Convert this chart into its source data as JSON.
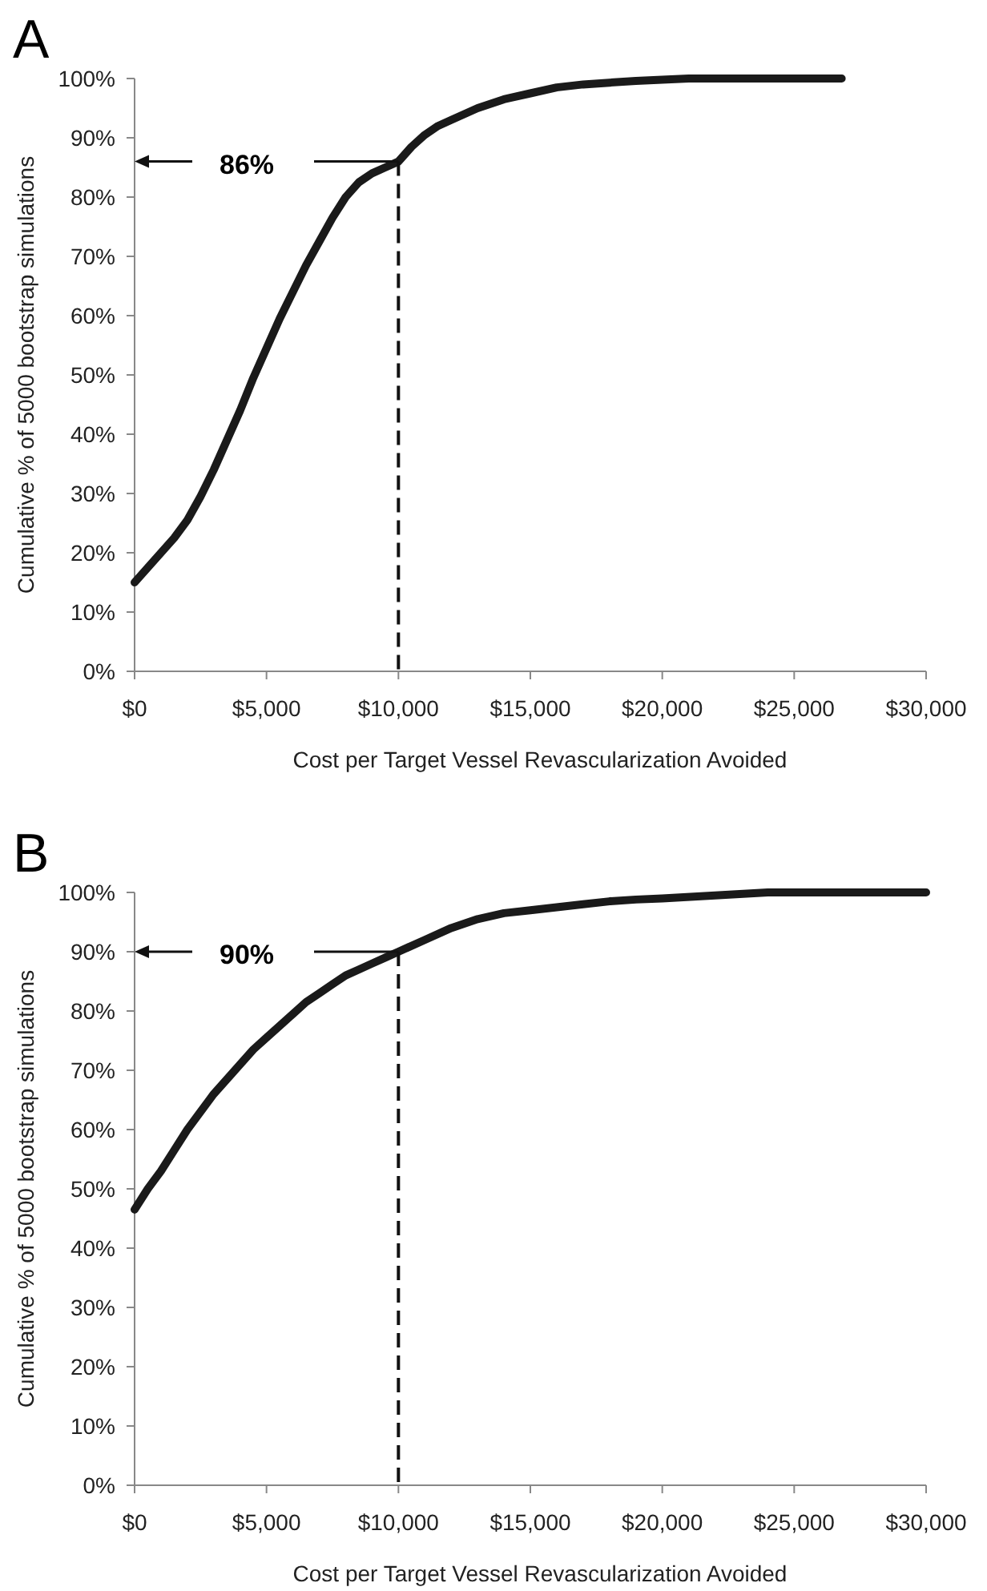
{
  "chart_data": [
    {
      "type": "line",
      "title": "A",
      "xlabel": "Cost per Target Vessel Revascularization Avoided",
      "ylabel": "Cumulative % of 5000 bootstrap simulations",
      "series": [
        {
          "color": "#1a1a1a",
          "x": [
            0,
            500,
            1000,
            1500,
            2000,
            2500,
            3000,
            3500,
            4000,
            4500,
            5000,
            5500,
            6000,
            6500,
            7000,
            7500,
            8000,
            8500,
            9000,
            9500,
            10000,
            10500,
            11000,
            11500,
            12000,
            13000,
            14000,
            15000,
            16000,
            17000,
            18000,
            19000,
            20000,
            21000,
            23000,
            24000,
            26800
          ],
          "values": [
            15,
            17.5,
            20,
            22.5,
            25.5,
            29.5,
            34,
            39,
            44,
            49.5,
            54.5,
            59.5,
            64,
            68.5,
            72.5,
            76.5,
            80,
            82.5,
            84,
            85,
            86,
            88.5,
            90.5,
            92,
            93,
            95,
            96.5,
            97.5,
            98.5,
            99,
            99.3,
            99.6,
            99.8,
            100,
            100,
            100,
            100
          ]
        }
      ],
      "xlim": [
        0,
        30000
      ],
      "xticks": [
        {
          "value": 0,
          "label": "$0"
        },
        {
          "value": 5000,
          "label": "$5,000"
        },
        {
          "value": 10000,
          "label": "$10,000"
        },
        {
          "value": 15000,
          "label": "$15,000"
        },
        {
          "value": 20000,
          "label": "$20,000"
        },
        {
          "value": 25000,
          "label": "$25,000"
        },
        {
          "value": 30000,
          "label": "$30,000"
        }
      ],
      "ylim": [
        0,
        100
      ],
      "yticks": [
        {
          "value": 0,
          "label": "0%"
        },
        {
          "value": 10,
          "label": "10%"
        },
        {
          "value": 20,
          "label": "20%"
        },
        {
          "value": 30,
          "label": "30%"
        },
        {
          "value": 40,
          "label": "40%"
        },
        {
          "value": 50,
          "label": "50%"
        },
        {
          "value": 60,
          "label": "60%"
        },
        {
          "value": 70,
          "label": "70%"
        },
        {
          "value": 80,
          "label": "80%"
        },
        {
          "value": 90,
          "label": "90%"
        },
        {
          "value": 100,
          "label": "100%"
        }
      ],
      "ref_lines": [
        {
          "axis": "x",
          "value": 10000,
          "line_style": "dashed"
        },
        {
          "axis": "y",
          "value": 86,
          "label": "86%"
        }
      ],
      "marker": "none",
      "line_style": "solid"
    },
    {
      "type": "line",
      "title": "B",
      "xlabel": "Cost per Target Vessel Revascularization Avoided",
      "ylabel": "Cumulative % of 5000 bootstrap simulations",
      "series": [
        {
          "color": "#1a1a1a",
          "x": [
            0,
            500,
            1000,
            1500,
            2000,
            2500,
            3000,
            3500,
            4000,
            4500,
            5000,
            5500,
            6000,
            6500,
            7000,
            7500,
            8000,
            8500,
            9000,
            9500,
            10000,
            11000,
            12000,
            13000,
            14000,
            15000,
            16000,
            17000,
            18000,
            19000,
            20000,
            22000,
            24000,
            26000,
            28000,
            30000
          ],
          "values": [
            46.5,
            50,
            53,
            56.5,
            60,
            63,
            66,
            68.5,
            71,
            73.5,
            75.5,
            77.5,
            79.5,
            81.5,
            83,
            84.5,
            86,
            87,
            88,
            89,
            90,
            92,
            94,
            95.5,
            96.5,
            97,
            97.5,
            98,
            98.5,
            98.8,
            99,
            99.5,
            100,
            100,
            100,
            100
          ]
        }
      ],
      "xlim": [
        0,
        30000
      ],
      "xticks": [
        {
          "value": 0,
          "label": "$0"
        },
        {
          "value": 5000,
          "label": "$5,000"
        },
        {
          "value": 10000,
          "label": "$10,000"
        },
        {
          "value": 15000,
          "label": "$15,000"
        },
        {
          "value": 20000,
          "label": "$20,000"
        },
        {
          "value": 25000,
          "label": "$25,000"
        },
        {
          "value": 30000,
          "label": "$30,000"
        }
      ],
      "ylim": [
        0,
        100
      ],
      "yticks": [
        {
          "value": 0,
          "label": "0%"
        },
        {
          "value": 10,
          "label": "10%"
        },
        {
          "value": 20,
          "label": "20%"
        },
        {
          "value": 30,
          "label": "30%"
        },
        {
          "value": 40,
          "label": "40%"
        },
        {
          "value": 50,
          "label": "50%"
        },
        {
          "value": 60,
          "label": "60%"
        },
        {
          "value": 70,
          "label": "70%"
        },
        {
          "value": 80,
          "label": "80%"
        },
        {
          "value": 90,
          "label": "90%"
        },
        {
          "value": 100,
          "label": "100%"
        }
      ],
      "ref_lines": [
        {
          "axis": "x",
          "value": 10000,
          "line_style": "dashed"
        },
        {
          "axis": "y",
          "value": 90,
          "label": "90%"
        }
      ],
      "marker": "none",
      "line_style": "solid"
    }
  ]
}
